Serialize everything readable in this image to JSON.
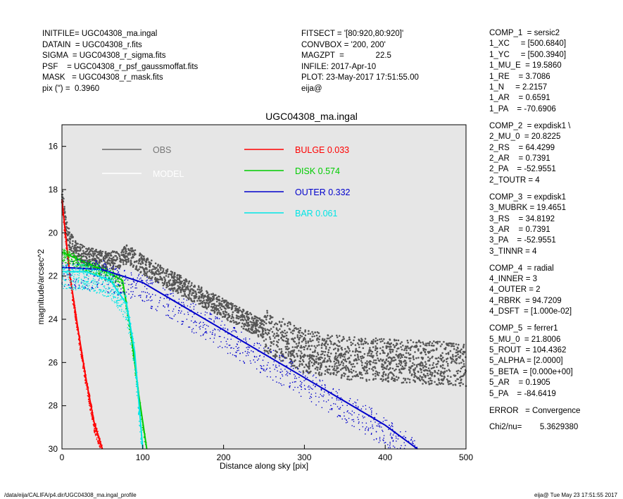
{
  "header_left": [
    "INITFILE= UGC04308_ma.ingal",
    "DATAIN  = UGC04308_r.fits",
    "SIGMA  = UGC04308_r_sigma.fits",
    "PSF    = UGC04308_r_psf_gaussmoffat.fits",
    "MASK   = UGC04308_r_mask.fits",
    "pix (\") =  0.3960"
  ],
  "header_mid": [
    "FITSECT = '[80:920,80:920]'",
    "CONVBOX = '200, 200'",
    "MAGZPT  =              22.5",
    "INFILE: 2017-Apr-10",
    "PLOT: 23-May-2017 17:51:55.00",
    "eija@"
  ],
  "components": [
    [
      "COMP_1  = sersic2",
      "1_XC     = [500.6840]",
      "1_YC     = [500.3940]",
      "1_MU_E  = 19.5860",
      "1_RE    = 3.7086",
      "1_N     = 2.2157",
      "1_AR    = 0.6591",
      "1_PA    = -70.6906"
    ],
    [
      "COMP_2  = expdisk1 \\",
      "2_MU_0  = 20.8225",
      "2_RS    = 64.4299",
      "2_AR    = 0.7391",
      "2_PA    = -52.9551",
      "2_TOUTR = 4"
    ],
    [
      "COMP_3  = expdisk1",
      "3_MUBRK = 19.4651",
      "3_RS    = 34.8192",
      "3_AR    = 0.7391",
      "3_PA    = -52.9551",
      "3_TINNR = 4"
    ],
    [
      "COMP_4  = radial",
      "4_INNER = 3",
      "4_OUTER = 2",
      "4_RBRK  = 94.7209",
      "4_DSFT  = [1.000e-02]"
    ],
    [
      "COMP_5  = ferrer1",
      "5_MU_0  = 21.8006",
      "5_ROUT  = 104.4362",
      "5_ALPHA = [2.0000]",
      "5_BETA  = [0.000e+00]",
      "5_AR    = 0.1905",
      "5_PA    = -84.6419"
    ],
    [
      "ERROR   = Convergence"
    ],
    [
      "Chi2/nu=        5.3629380"
    ]
  ],
  "footer_left": "/data/eija/CALIFA/p4.dir/UGC04308_ma.ingal_profile",
  "footer_right": "eija@  Tue May 23 17:51:55 2017",
  "chart_data": {
    "type": "scatter",
    "title": "UGC04308_ma.ingal",
    "xlabel": "Distance along sky [pix]",
    "ylabel": "magnitude/arcsec^2",
    "xlim": [
      0,
      500
    ],
    "ylim": [
      30,
      15
    ],
    "y_inverted": true,
    "xticks": [
      0,
      100,
      200,
      300,
      400,
      500
    ],
    "yticks": [
      16,
      18,
      20,
      22,
      24,
      26,
      28,
      30
    ],
    "background": "#e6e6e6",
    "legend": [
      {
        "name": "OBS",
        "color": "#666666"
      },
      {
        "name": "MODEL",
        "color": "#ffffff"
      },
      {
        "name": "BULGE  0.033",
        "color": "#ff0000"
      },
      {
        "name": "DISK  0.574",
        "color": "#00cc00"
      },
      {
        "name": "OUTER  0.332",
        "color": "#0000cc"
      },
      {
        "name": "BAR  0.061",
        "color": "#00e5e5"
      }
    ],
    "series": [
      {
        "name": "OBS",
        "color": "#555555",
        "x": [
          0,
          5,
          10,
          20,
          30,
          40,
          50,
          60,
          70,
          80,
          90,
          100,
          150,
          200,
          250,
          300,
          350,
          400,
          450,
          500
        ],
        "y": [
          18.2,
          19.8,
          20.4,
          20.9,
          21.1,
          21.2,
          21.3,
          21.3,
          21.2,
          21.0,
          21.2,
          21.5,
          22.5,
          23.5,
          24.5,
          25.5,
          25.8,
          25.9,
          26.0,
          26.1
        ]
      },
      {
        "name": "BULGE  0.033",
        "color": "#ff0000",
        "x": [
          0,
          10,
          20,
          30,
          40,
          50
        ],
        "y": [
          18.5,
          22.0,
          24.5,
          26.8,
          28.8,
          30.0
        ]
      },
      {
        "name": "DISK  0.574",
        "color": "#00cc00",
        "x": [
          0,
          50,
          75,
          85,
          95,
          105
        ],
        "y": [
          20.9,
          21.7,
          22.2,
          24.5,
          27.5,
          30.0
        ]
      },
      {
        "name": "OUTER  0.332",
        "color": "#0000cc",
        "x": [
          0,
          50,
          100,
          150,
          200,
          250,
          300,
          350,
          400,
          440
        ],
        "y": [
          21.6,
          21.7,
          22.3,
          23.4,
          24.5,
          25.6,
          26.7,
          27.8,
          28.9,
          30.0
        ]
      },
      {
        "name": "BAR  0.061",
        "color": "#00e5e5",
        "x": [
          0,
          30,
          60,
          80,
          90,
          100
        ],
        "y": [
          21.8,
          21.8,
          22.2,
          23.3,
          25.5,
          30.0
        ]
      }
    ]
  }
}
